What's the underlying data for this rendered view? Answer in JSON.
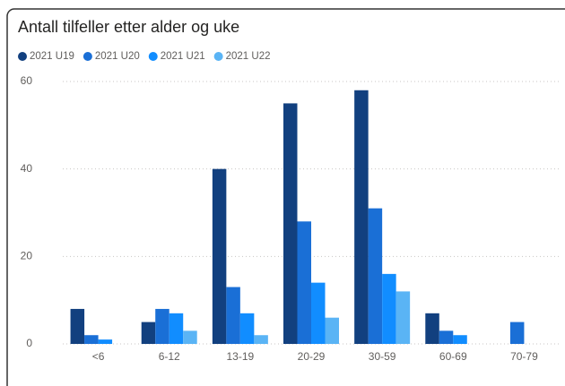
{
  "chart_data": {
    "type": "bar",
    "title": "Antall tilfeller etter alder og uke",
    "categories": [
      "<6",
      "6-12",
      "13-19",
      "20-29",
      "30-59",
      "60-69",
      "70-79"
    ],
    "series": [
      {
        "name": "2021 U19",
        "color": "#12407f",
        "values": [
          8,
          5,
          40,
          55,
          58,
          7,
          0
        ]
      },
      {
        "name": "2021 U20",
        "color": "#1a6fd6",
        "values": [
          2,
          8,
          13,
          28,
          31,
          3,
          5
        ]
      },
      {
        "name": "2021 U21",
        "color": "#118dff",
        "values": [
          1,
          7,
          7,
          14,
          16,
          2,
          0
        ]
      },
      {
        "name": "2021 U22",
        "color": "#5ab4f5",
        "values": [
          0,
          3,
          2,
          6,
          12,
          0,
          0
        ]
      }
    ],
    "ylim": [
      0,
      60
    ],
    "yticks": [
      0,
      20,
      40,
      60
    ],
    "grid": true,
    "legend": "top-left"
  }
}
